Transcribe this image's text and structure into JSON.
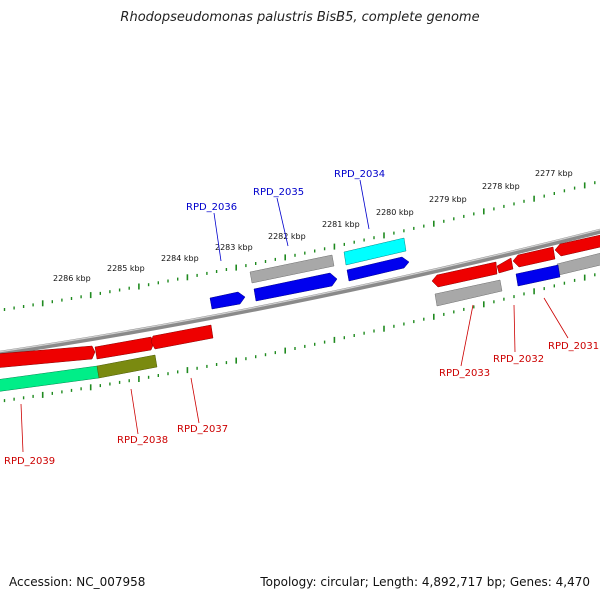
{
  "title": "Rhodopseudomonas palustris BisB5, complete genome",
  "footer": {
    "accession": "Accession: NC_007958",
    "summary": "Topology: circular; Length: 4,892,717 bp; Genes: 4,470"
  },
  "colors": {
    "backbone": "#8a8a8a",
    "scale_ticks": "#1f8a1f",
    "label_forward": "#0000cc",
    "label_reverse": "#cc0000"
  },
  "scale_labels": [
    "2286 kbp",
    "2285 kbp",
    "2284 kbp",
    "2283 kbp",
    "2282 kbp",
    "2281 kbp",
    "2280 kbp",
    "2279 kbp",
    "2278 kbp",
    "2277 kbp"
  ],
  "features": {
    "forward": [
      {
        "label": "RPD_2036",
        "color": "#0000ee",
        "label_color": "#0000cc"
      },
      {
        "label": "RPD_2035",
        "color": "#0000ee",
        "label_color": "#0000cc"
      },
      {
        "label": "RPD_2034",
        "color": "#00ffff",
        "label_color": "#0000cc"
      },
      {
        "label": "",
        "color": "#a0a0a0"
      },
      {
        "label": "",
        "color": "#0000ee"
      }
    ],
    "reverse": [
      {
        "label": "RPD_2039",
        "color": "#00ee88",
        "label_color": "#cc0000"
      },
      {
        "label": "RPD_2038",
        "color": "#7a8a10",
        "label_color": "#cc0000"
      },
      {
        "label": "RPD_2037",
        "color": "#ee0000",
        "label_color": "#cc0000"
      },
      {
        "label": "RPD_2033",
        "color": "#a0a0a0",
        "label_color": "#cc0000"
      },
      {
        "label": "RPD_2032",
        "color": "#ee0000",
        "label_color": "#cc0000"
      },
      {
        "label": "RPD_2031",
        "color": "#0000ee",
        "label_color": "#cc0000"
      }
    ]
  }
}
